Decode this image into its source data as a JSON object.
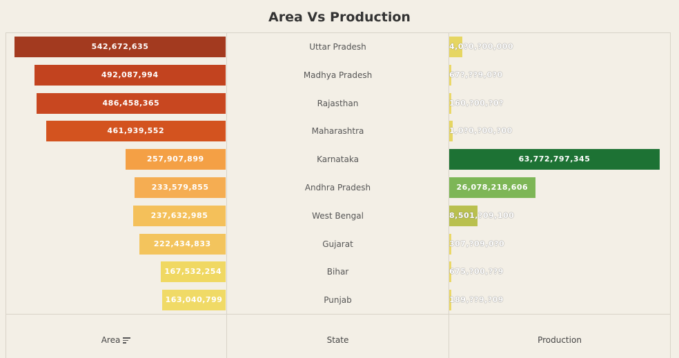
{
  "title": "Area Vs Production",
  "headers": {
    "area": "Area",
    "state": "State",
    "production": "Production"
  },
  "chart_data": {
    "type": "bar",
    "categories": [
      "Uttar Pradesh",
      "Madhya Pradesh",
      "Rajasthan",
      "Maharashtra",
      "Karnataka",
      "Andhra Pradesh",
      "West Bengal",
      "Gujarat",
      "Bihar",
      "Punjab"
    ],
    "series": [
      {
        "name": "Area",
        "values": [
          542672635,
          492087994,
          486458365,
          461939552,
          257907899,
          233579855,
          237632985,
          222434833,
          167532254,
          163040799
        ],
        "labels": [
          "542,672,635",
          "492,087,994",
          "486,458,365",
          "461,939,552",
          "257,907,899",
          "233,579,855",
          "237,632,985",
          "222,434,833",
          "167,532,254",
          "163,040,799"
        ],
        "colors": [
          "#a33a1f",
          "#c2431f",
          "#c84720",
          "#d3531f",
          "#f4a045",
          "#f5ad52",
          "#f4c05a",
          "#f3c45d",
          "#f0d862",
          "#f0da66"
        ]
      },
      {
        "name": "Production",
        "values": [
          4070000000,
          678000000,
          160000000,
          1020000000,
          63772797345,
          26078218606,
          8501000000,
          307000000,
          675000000,
          189000000
        ],
        "labels": [
          "4,0?0,?00,000",
          "67?,??9,0?0",
          "160,?00,?0?",
          "1,0?0,?00,?00",
          "63,772,797,345",
          "26,078,218,606",
          "8,501,?09,100",
          "307,?09,0?0",
          "675,?00,??9",
          "189,??9,?09"
        ],
        "colors": [
          "#e6d662",
          "#ebd868",
          "#ebd868",
          "#e6d662",
          "#1d7234",
          "#7db656",
          "#b9c04e",
          "#ebd868",
          "#ebd868",
          "#ebd868"
        ]
      }
    ],
    "area_axis_max": 542672635,
    "production_axis_max": 63772797345
  }
}
